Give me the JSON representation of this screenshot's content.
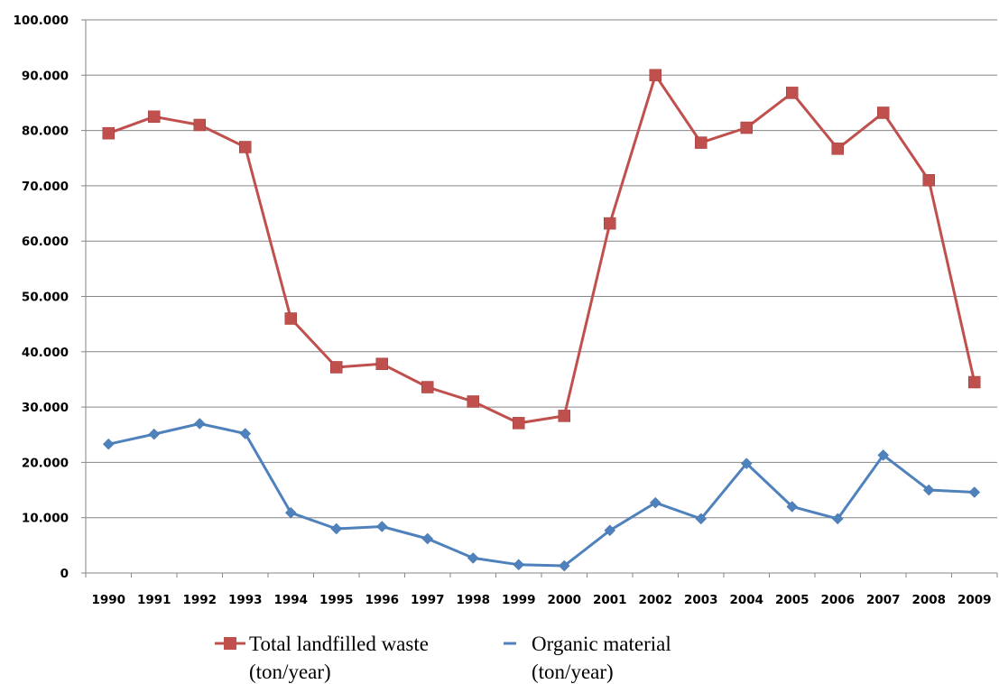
{
  "chart_data": {
    "type": "line",
    "title": "",
    "xlabel": "",
    "ylabel": "",
    "categories": [
      "1990",
      "1991",
      "1992",
      "1993",
      "1994",
      "1995",
      "1996",
      "1997",
      "1998",
      "1999",
      "2000",
      "2001",
      "2002",
      "2003",
      "2004",
      "2005",
      "2006",
      "2007",
      "2008",
      "2009"
    ],
    "ylim": [
      0,
      100000
    ],
    "yticks": [
      "0",
      "10.000",
      "20.000",
      "30.000",
      "40.000",
      "50.000",
      "60.000",
      "70.000",
      "80.000",
      "90.000",
      "100.000"
    ],
    "grid": true,
    "legend_position": "bottom",
    "series": [
      {
        "name_line1": "Total landfilled waste",
        "name_line2": "(ton/year)",
        "color": "#C0504D",
        "marker": "square",
        "values": [
          79500,
          82500,
          81000,
          77000,
          46000,
          37200,
          37800,
          33600,
          31000,
          27100,
          28400,
          63200,
          90000,
          77800,
          80500,
          86800,
          76700,
          83200,
          71000,
          34500
        ]
      },
      {
        "name_line1": "Organic material",
        "name_line2": "(ton/year)",
        "color": "#4F81BD",
        "marker": "diamond",
        "values": [
          23300,
          25100,
          27000,
          25200,
          10900,
          8000,
          8400,
          6200,
          2700,
          1500,
          1300,
          7700,
          12700,
          9800,
          19800,
          12000,
          9800,
          21300,
          15000,
          14600
        ]
      }
    ]
  }
}
